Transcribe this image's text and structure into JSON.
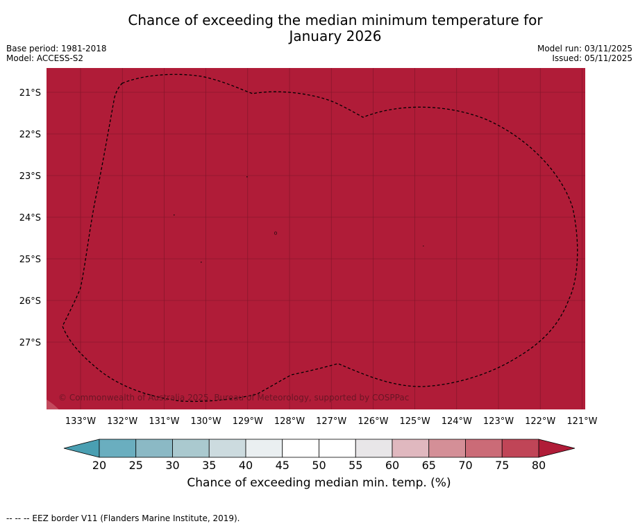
{
  "title": {
    "line1": "Chance of exceeding the median minimum temperature for",
    "line2": "January 2026"
  },
  "meta": {
    "base_period": "Base period: 1981-2018",
    "model": "Model: ACCESS-S2",
    "model_run": "Model run: 03/11/2025",
    "issued": "Issued: 05/11/2025"
  },
  "map": {
    "fill_color": "#b01c38",
    "copyright": "© Commonwealth of Australia 2025, Bureau of Meteorology, supported by COSPPac",
    "lat_labels": [
      "21°S",
      "22°S",
      "23°S",
      "24°S",
      "25°S",
      "26°S",
      "27°S"
    ],
    "lon_labels": [
      "133°W",
      "132°W",
      "131°W",
      "130°W",
      "129°W",
      "128°W",
      "127°W",
      "126°W",
      "125°W",
      "124°W",
      "123°W",
      "122°W",
      "121°W"
    ],
    "border_style": "dashed",
    "border_name": "EEZ border"
  },
  "colorbar": {
    "ticks": [
      "20",
      "25",
      "30",
      "35",
      "40",
      "45",
      "50",
      "55",
      "60",
      "65",
      "70",
      "75",
      "80"
    ],
    "colors": [
      "#6aaebf",
      "#8bb9c5",
      "#aac9cf",
      "#ccdbdf",
      "#eaeff1",
      "#ffffff",
      "#ffffff",
      "#e8e6e8",
      "#e0b8bf",
      "#d48f97",
      "#cb6b77",
      "#c04557"
    ],
    "low_extend_color": "#4a9fb2",
    "high_extend_color": "#b01c38",
    "label": "Chance of exceeding median min. temp. (%)"
  },
  "footer": {
    "legend": "--  --  -- EEZ border V11 (Flanders Marine Institute, 2019)."
  }
}
